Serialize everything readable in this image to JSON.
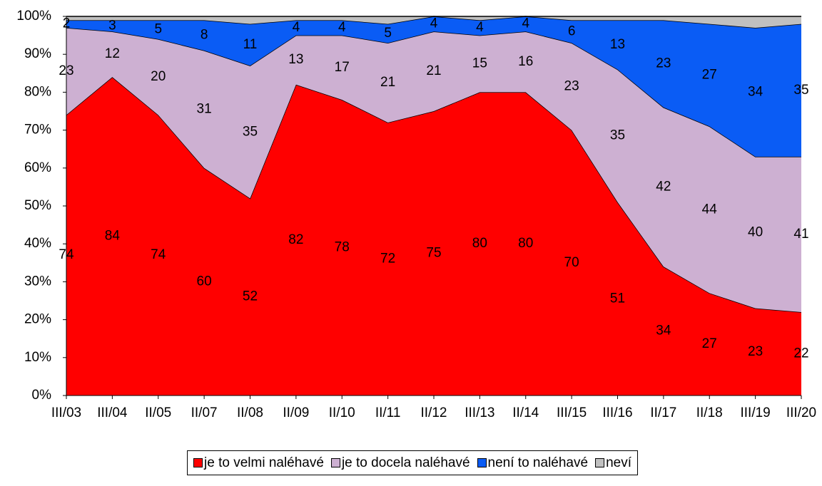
{
  "chart_data": {
    "type": "stacked_area",
    "categories": [
      "III/03",
      "III/04",
      "II/05",
      "II/07",
      "II/08",
      "II/09",
      "II/10",
      "II/11",
      "II/12",
      "III/13",
      "II/14",
      "III/15",
      "III/16",
      "II/17",
      "II/18",
      "III/19",
      "III/20"
    ],
    "series": [
      {
        "name": "je to velmi naléhavé",
        "color": "#ff0000",
        "data_labels": true,
        "values": [
          74,
          84,
          74,
          60,
          52,
          82,
          78,
          72,
          75,
          80,
          80,
          70,
          51,
          34,
          27,
          23,
          22
        ]
      },
      {
        "name": "je to docela naléhavé",
        "color": "#cdb0d2",
        "data_labels": true,
        "values": [
          23,
          12,
          20,
          31,
          35,
          13,
          17,
          21,
          21,
          15,
          16,
          23,
          35,
          42,
          44,
          40,
          41
        ]
      },
      {
        "name": "není to naléhavé",
        "color": "#0a5cf5",
        "data_labels": true,
        "values": [
          2,
          3,
          5,
          8,
          11,
          4,
          4,
          5,
          4,
          4,
          4,
          6,
          13,
          23,
          27,
          34,
          35
        ]
      },
      {
        "name": "neví",
        "color": "#c0c0c0",
        "data_labels": false,
        "values": [
          1,
          1,
          1,
          1,
          2,
          1,
          1,
          2,
          0,
          1,
          0,
          1,
          1,
          1,
          2,
          3,
          2
        ]
      }
    ],
    "ylim": [
      0,
      100
    ],
    "yticks": [
      {
        "value": 0,
        "label": "0%"
      },
      {
        "value": 10,
        "label": "10%"
      },
      {
        "value": 20,
        "label": "20%"
      },
      {
        "value": 30,
        "label": "30%"
      },
      {
        "value": 40,
        "label": "40%"
      },
      {
        "value": 50,
        "label": "50%"
      },
      {
        "value": 60,
        "label": "60%"
      },
      {
        "value": 70,
        "label": "70%"
      },
      {
        "value": 80,
        "label": "80%"
      },
      {
        "value": 90,
        "label": "90%"
      },
      {
        "value": 100,
        "label": "100%"
      }
    ],
    "legend": "bottom"
  }
}
